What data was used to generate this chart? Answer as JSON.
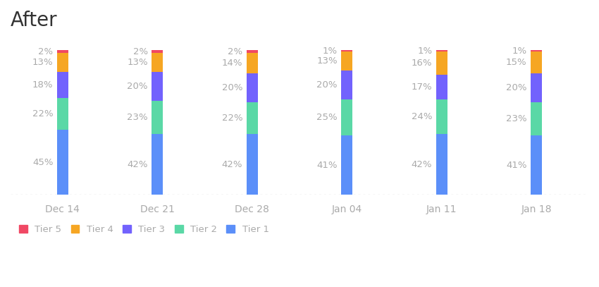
{
  "title": "After",
  "categories": [
    "Dec 14",
    "Dec 21",
    "Dec 28",
    "Jan 04",
    "Jan 11",
    "Jan 18"
  ],
  "tiers": {
    "Tier 1": [
      45,
      42,
      42,
      41,
      42,
      41
    ],
    "Tier 2": [
      22,
      23,
      22,
      25,
      24,
      23
    ],
    "Tier 3": [
      18,
      20,
      20,
      20,
      17,
      20
    ],
    "Tier 4": [
      13,
      13,
      14,
      13,
      16,
      15
    ],
    "Tier 5": [
      2,
      2,
      2,
      1,
      1,
      1
    ]
  },
  "colors": {
    "Tier 1": "#5B8FF9",
    "Tier 2": "#5AD8A6",
    "Tier 3": "#7262FD",
    "Tier 4": "#F6A623",
    "Tier 5": "#F04864"
  },
  "bar_width": 0.12,
  "title_fontsize": 20,
  "label_fontsize": 9.5,
  "tick_fontsize": 10,
  "legend_fontsize": 9.5,
  "background_color": "#ffffff",
  "text_color": "#aaaaaa",
  "title_color": "#333333",
  "ylim": [
    0,
    110
  ]
}
